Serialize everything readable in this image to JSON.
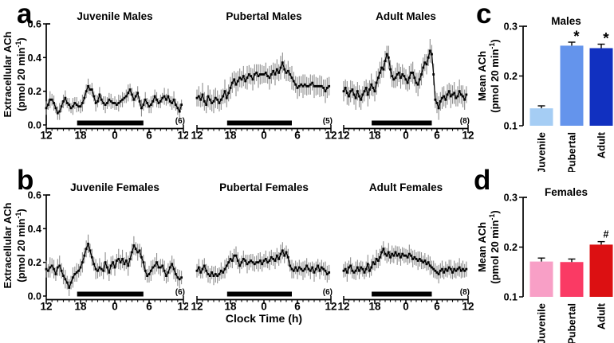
{
  "panels": {
    "a": "a",
    "b": "b",
    "c": "c",
    "d": "d"
  },
  "axis_labels": {
    "line_ylabel_main": "Extracellular ACh",
    "bar_ylabel_main": "Mean ACh",
    "unit_pre": "(pmol 20 min",
    "unit_sup": "-1",
    "unit_post": ")",
    "x_axis_title": "Clock Time (h)"
  },
  "colors": {
    "trace": "#000000",
    "error_bar_line": "#8e8e8e",
    "dark_phase_bar": "#000000",
    "male_juvenile": "#a5cdf4",
    "male_pubertal": "#6494ec",
    "male_adult": "#1130c0",
    "female_juvenile": "#f89fc6",
    "female_pubertal": "#fa3a64",
    "female_adult": "#dc1012"
  },
  "chart_data": [
    {
      "id": "juvenile_males",
      "type": "line",
      "panel": "a",
      "title": "Juvenile Males",
      "n_label": "(6)",
      "x_start_h": 12,
      "x_interval_min": 20,
      "xtick_positions": [
        12,
        18,
        24,
        30,
        36
      ],
      "xtick_labels": [
        "12",
        "18",
        "0",
        "6",
        "12"
      ],
      "ylim": [
        0,
        0.6
      ],
      "ytick_values": [
        0.0,
        0.2,
        0.4,
        0.6
      ],
      "ytick_labels": [
        "0.0",
        "0.2",
        "0.4",
        "0.6"
      ],
      "dark_phase_h": [
        17.4,
        29.0
      ],
      "xlabel": "",
      "values": [
        0.1,
        0.12,
        0.15,
        0.15,
        0.13,
        0.1,
        0.07,
        0.08,
        0.11,
        0.14,
        0.16,
        0.13,
        0.12,
        0.1,
        0.11,
        0.13,
        0.12,
        0.11,
        0.11,
        0.13,
        0.16,
        0.2,
        0.23,
        0.21,
        0.21,
        0.17,
        0.13,
        0.14,
        0.18,
        0.15,
        0.13,
        0.12,
        0.13,
        0.15,
        0.14,
        0.13,
        0.13,
        0.12,
        0.13,
        0.14,
        0.15,
        0.16,
        0.17,
        0.19,
        0.21,
        0.18,
        0.15,
        0.17,
        0.19,
        0.14,
        0.1,
        0.12,
        0.15,
        0.13,
        0.11,
        0.12,
        0.14,
        0.17,
        0.15,
        0.13,
        0.14,
        0.16,
        0.17,
        0.15,
        0.17,
        0.14,
        0.13,
        0.15,
        0.12,
        0.1,
        0.08,
        0.12
      ],
      "errors": [
        0.04,
        0.03,
        0.05,
        0.035,
        0.045,
        0.03,
        0.04,
        0.05,
        0.035,
        0.04,
        0.045,
        0.03,
        0.04,
        0.03,
        0.05,
        0.035,
        0.045,
        0.03,
        0.04,
        0.05,
        0.035,
        0.04,
        0.045,
        0.03,
        0.04,
        0.03,
        0.05,
        0.035,
        0.045,
        0.03,
        0.04,
        0.05,
        0.035,
        0.04,
        0.045,
        0.03,
        0.04,
        0.03,
        0.05,
        0.035,
        0.045,
        0.03,
        0.04,
        0.05,
        0.035,
        0.04,
        0.045,
        0.03,
        0.04,
        0.03,
        0.05,
        0.035,
        0.045,
        0.03,
        0.04,
        0.05,
        0.035,
        0.04,
        0.045,
        0.03,
        0.04,
        0.03,
        0.05,
        0.035,
        0.045,
        0.03,
        0.04,
        0.05,
        0.035,
        0.04,
        0.045,
        0.03
      ]
    },
    {
      "id": "pubertal_males",
      "type": "line",
      "panel": "a",
      "title": "Pubertal Males",
      "n_label": "(5)",
      "x_start_h": 12,
      "x_interval_min": 20,
      "xtick_positions": [
        12,
        18,
        24,
        30,
        36
      ],
      "xtick_labels": [
        "12",
        "18",
        "0",
        "6",
        "12"
      ],
      "ylim": [
        0,
        0.6
      ],
      "ytick_values": [
        0.0,
        0.2,
        0.4,
        0.6
      ],
      "ytick_labels": [
        "0.0",
        "0.2",
        "0.4",
        "0.6"
      ],
      "dark_phase_h": [
        17.4,
        29.0
      ],
      "xlabel": "",
      "values": [
        0.16,
        0.17,
        0.15,
        0.18,
        0.14,
        0.12,
        0.17,
        0.15,
        0.13,
        0.14,
        0.16,
        0.15,
        0.13,
        0.15,
        0.17,
        0.2,
        0.16,
        0.19,
        0.22,
        0.25,
        0.27,
        0.24,
        0.26,
        0.28,
        0.27,
        0.29,
        0.26,
        0.28,
        0.3,
        0.29,
        0.27,
        0.3,
        0.31,
        0.29,
        0.3,
        0.3,
        0.3,
        0.31,
        0.29,
        0.28,
        0.3,
        0.32,
        0.3,
        0.33,
        0.31,
        0.34,
        0.37,
        0.33,
        0.31,
        0.32,
        0.3,
        0.28,
        0.26,
        0.24,
        0.22,
        0.23,
        0.24,
        0.23,
        0.24,
        0.23,
        0.23,
        0.24,
        0.25,
        0.23,
        0.23,
        0.23,
        0.23,
        0.23,
        0.22,
        0.2,
        0.22,
        0.23
      ],
      "errors": [
        0.05,
        0.06,
        0.045,
        0.07,
        0.055,
        0.05,
        0.065,
        0.06,
        0.05,
        0.07,
        0.06,
        0.055,
        0.05,
        0.06,
        0.045,
        0.07,
        0.055,
        0.05,
        0.065,
        0.06,
        0.05,
        0.07,
        0.06,
        0.055,
        0.05,
        0.06,
        0.045,
        0.07,
        0.055,
        0.05,
        0.065,
        0.06,
        0.05,
        0.07,
        0.06,
        0.055,
        0.05,
        0.06,
        0.045,
        0.07,
        0.055,
        0.05,
        0.065,
        0.06,
        0.05,
        0.07,
        0.06,
        0.055,
        0.05,
        0.06,
        0.045,
        0.07,
        0.055,
        0.05,
        0.065,
        0.06,
        0.05,
        0.07,
        0.06,
        0.055,
        0.05,
        0.06,
        0.045,
        0.07,
        0.055,
        0.05,
        0.065,
        0.06,
        0.05,
        0.07,
        0.06,
        0.055
      ]
    },
    {
      "id": "adult_males",
      "type": "line",
      "panel": "a",
      "title": "Adult Males",
      "n_label": "(8)",
      "x_start_h": 12,
      "x_interval_min": 20,
      "xtick_positions": [
        12,
        18,
        24,
        30,
        36
      ],
      "xtick_labels": [
        "12",
        "18",
        "0",
        "6",
        "12"
      ],
      "ylim": [
        0,
        0.6
      ],
      "ytick_values": [
        0.0,
        0.2,
        0.4,
        0.6
      ],
      "ytick_labels": [
        "0.0",
        "0.2",
        "0.4",
        "0.6"
      ],
      "dark_phase_h": [
        17.4,
        29.0
      ],
      "xlabel": "",
      "values": [
        0.2,
        0.22,
        0.19,
        0.17,
        0.2,
        0.21,
        0.18,
        0.16,
        0.2,
        0.17,
        0.15,
        0.18,
        0.2,
        0.22,
        0.18,
        0.21,
        0.24,
        0.22,
        0.2,
        0.25,
        0.28,
        0.31,
        0.34,
        0.33,
        0.38,
        0.42,
        0.4,
        0.33,
        0.29,
        0.27,
        0.28,
        0.3,
        0.31,
        0.28,
        0.3,
        0.29,
        0.27,
        0.25,
        0.28,
        0.31,
        0.31,
        0.28,
        0.25,
        0.24,
        0.27,
        0.3,
        0.34,
        0.37,
        0.36,
        0.4,
        0.44,
        0.42,
        0.3,
        0.15,
        0.13,
        0.1,
        0.14,
        0.16,
        0.17,
        0.15,
        0.18,
        0.2,
        0.17,
        0.18,
        0.19,
        0.16,
        0.17,
        0.2,
        0.18,
        0.17,
        0.15,
        0.18
      ],
      "errors": [
        0.06,
        0.05,
        0.07,
        0.055,
        0.065,
        0.05,
        0.06,
        0.07,
        0.055,
        0.065,
        0.06,
        0.05,
        0.06,
        0.05,
        0.07,
        0.055,
        0.065,
        0.05,
        0.06,
        0.07,
        0.055,
        0.065,
        0.06,
        0.05,
        0.06,
        0.05,
        0.07,
        0.055,
        0.065,
        0.05,
        0.06,
        0.07,
        0.055,
        0.065,
        0.06,
        0.05,
        0.06,
        0.05,
        0.07,
        0.055,
        0.065,
        0.05,
        0.06,
        0.07,
        0.055,
        0.065,
        0.06,
        0.05,
        0.06,
        0.05,
        0.07,
        0.055,
        0.065,
        0.05,
        0.06,
        0.07,
        0.055,
        0.065,
        0.06,
        0.05,
        0.06,
        0.05,
        0.07,
        0.055,
        0.065,
        0.05,
        0.06,
        0.07,
        0.055,
        0.065,
        0.06,
        0.05
      ]
    },
    {
      "id": "males_mean",
      "type": "bar",
      "panel": "c",
      "title": "Males",
      "categories": [
        "Juvenile",
        "Pubertal",
        "Adult"
      ],
      "values": [
        0.135,
        0.261,
        0.256
      ],
      "errors": [
        0.005,
        0.007,
        0.008
      ],
      "annotations": [
        "",
        "*",
        "*"
      ],
      "bar_colors": [
        "#a5cdf4",
        "#6494ec",
        "#1130c0"
      ],
      "ylim": [
        0.1,
        0.3
      ],
      "ytick_values": [
        0.1,
        0.2,
        0.3
      ],
      "ytick_labels": [
        "0.1",
        "0.2",
        "0.3"
      ]
    },
    {
      "id": "juvenile_females",
      "type": "line",
      "panel": "b",
      "title": "Juvenile Females",
      "n_label": "(6)",
      "x_start_h": 12,
      "x_interval_min": 20,
      "xtick_positions": [
        12,
        18,
        24,
        30,
        36
      ],
      "xtick_labels": [
        "12",
        "18",
        "0",
        "6",
        "12"
      ],
      "ylim": [
        0,
        0.6
      ],
      "ytick_values": [
        0.0,
        0.2,
        0.4,
        0.6
      ],
      "ytick_labels": [
        "0.0",
        "0.2",
        "0.4",
        "0.6"
      ],
      "dark_phase_h": [
        17.4,
        29.0
      ],
      "xlabel": "",
      "values": [
        0.16,
        0.15,
        0.17,
        0.18,
        0.16,
        0.13,
        0.17,
        0.18,
        0.15,
        0.12,
        0.1,
        0.08,
        0.05,
        0.08,
        0.11,
        0.13,
        0.14,
        0.15,
        0.17,
        0.2,
        0.24,
        0.28,
        0.31,
        0.27,
        0.23,
        0.19,
        0.16,
        0.15,
        0.17,
        0.16,
        0.15,
        0.2,
        0.17,
        0.14,
        0.18,
        0.2,
        0.17,
        0.21,
        0.22,
        0.2,
        0.22,
        0.19,
        0.21,
        0.18,
        0.22,
        0.26,
        0.3,
        0.28,
        0.26,
        0.27,
        0.23,
        0.2,
        0.15,
        0.12,
        0.13,
        0.15,
        0.17,
        0.18,
        0.2,
        0.17,
        0.17,
        0.18,
        0.15,
        0.12,
        0.14,
        0.17,
        0.19,
        0.16,
        0.13,
        0.11,
        0.1,
        0.11
      ],
      "errors": [
        0.05,
        0.04,
        0.06,
        0.045,
        0.055,
        0.04,
        0.05,
        0.06,
        0.045,
        0.05,
        0.055,
        0.04,
        0.05,
        0.04,
        0.06,
        0.045,
        0.055,
        0.04,
        0.05,
        0.06,
        0.045,
        0.05,
        0.055,
        0.04,
        0.05,
        0.04,
        0.06,
        0.045,
        0.055,
        0.04,
        0.05,
        0.06,
        0.045,
        0.05,
        0.055,
        0.04,
        0.05,
        0.04,
        0.06,
        0.045,
        0.055,
        0.04,
        0.05,
        0.06,
        0.045,
        0.05,
        0.055,
        0.04,
        0.05,
        0.04,
        0.06,
        0.045,
        0.055,
        0.04,
        0.05,
        0.06,
        0.045,
        0.05,
        0.055,
        0.04,
        0.05,
        0.04,
        0.06,
        0.045,
        0.055,
        0.04,
        0.05,
        0.06,
        0.045,
        0.05,
        0.055,
        0.04
      ]
    },
    {
      "id": "pubertal_females",
      "type": "line",
      "panel": "b",
      "title": "Pubertal Females",
      "n_label": "(6)",
      "x_start_h": 12,
      "x_interval_min": 20,
      "xtick_positions": [
        12,
        18,
        24,
        30,
        36
      ],
      "xtick_labels": [
        "12",
        "18",
        "0",
        "6",
        "12"
      ],
      "ylim": [
        0,
        0.6
      ],
      "ytick_values": [
        0.0,
        0.2,
        0.4,
        0.6
      ],
      "ytick_labels": [
        "0.0",
        "0.2",
        "0.4",
        "0.6"
      ],
      "dark_phase_h": [
        17.4,
        29.0
      ],
      "xlabel": "Clock Time (h)",
      "values": [
        0.15,
        0.17,
        0.14,
        0.16,
        0.18,
        0.15,
        0.13,
        0.12,
        0.14,
        0.12,
        0.13,
        0.12,
        0.13,
        0.15,
        0.14,
        0.16,
        0.18,
        0.2,
        0.22,
        0.21,
        0.24,
        0.24,
        0.21,
        0.18,
        0.2,
        0.22,
        0.21,
        0.19,
        0.2,
        0.21,
        0.2,
        0.19,
        0.2,
        0.2,
        0.21,
        0.19,
        0.21,
        0.22,
        0.2,
        0.21,
        0.23,
        0.22,
        0.21,
        0.24,
        0.22,
        0.25,
        0.27,
        0.24,
        0.26,
        0.23,
        0.18,
        0.16,
        0.15,
        0.17,
        0.15,
        0.17,
        0.16,
        0.15,
        0.16,
        0.18,
        0.16,
        0.15,
        0.17,
        0.14,
        0.16,
        0.18,
        0.15,
        0.17,
        0.16,
        0.15,
        0.13,
        0.14
      ],
      "errors": [
        0.04,
        0.05,
        0.035,
        0.055,
        0.045,
        0.04,
        0.05,
        0.045,
        0.04,
        0.055,
        0.05,
        0.045,
        0.04,
        0.05,
        0.035,
        0.055,
        0.045,
        0.04,
        0.05,
        0.045,
        0.04,
        0.055,
        0.05,
        0.045,
        0.04,
        0.05,
        0.035,
        0.055,
        0.045,
        0.04,
        0.05,
        0.045,
        0.04,
        0.055,
        0.05,
        0.045,
        0.04,
        0.05,
        0.035,
        0.055,
        0.045,
        0.04,
        0.05,
        0.045,
        0.04,
        0.055,
        0.05,
        0.045,
        0.04,
        0.05,
        0.035,
        0.055,
        0.045,
        0.04,
        0.05,
        0.045,
        0.04,
        0.055,
        0.05,
        0.045,
        0.04,
        0.05,
        0.035,
        0.055,
        0.045,
        0.04,
        0.05,
        0.045,
        0.04,
        0.055,
        0.05,
        0.045
      ]
    },
    {
      "id": "adult_females",
      "type": "line",
      "panel": "b",
      "title": "Adult Females",
      "n_label": "(8)",
      "x_start_h": 12,
      "x_interval_min": 20,
      "xtick_positions": [
        12,
        18,
        24,
        30,
        36
      ],
      "xtick_labels": [
        "12",
        "18",
        "0",
        "6",
        "12"
      ],
      "ylim": [
        0,
        0.6
      ],
      "ytick_values": [
        0.0,
        0.2,
        0.4,
        0.6
      ],
      "ytick_labels": [
        "0.0",
        "0.2",
        "0.4",
        "0.6"
      ],
      "dark_phase_h": [
        17.4,
        29.0
      ],
      "xlabel": "",
      "values": [
        0.15,
        0.16,
        0.14,
        0.17,
        0.18,
        0.15,
        0.14,
        0.15,
        0.17,
        0.15,
        0.17,
        0.16,
        0.14,
        0.16,
        0.19,
        0.15,
        0.17,
        0.2,
        0.19,
        0.22,
        0.21,
        0.23,
        0.26,
        0.28,
        0.25,
        0.24,
        0.26,
        0.23,
        0.25,
        0.24,
        0.26,
        0.24,
        0.25,
        0.23,
        0.25,
        0.24,
        0.24,
        0.23,
        0.25,
        0.24,
        0.22,
        0.23,
        0.22,
        0.21,
        0.22,
        0.21,
        0.2,
        0.21,
        0.19,
        0.2,
        0.18,
        0.17,
        0.16,
        0.15,
        0.14,
        0.13,
        0.15,
        0.16,
        0.14,
        0.16,
        0.15,
        0.17,
        0.16,
        0.14,
        0.16,
        0.15,
        0.16,
        0.17,
        0.15,
        0.16,
        0.15,
        0.16
      ],
      "errors": [
        0.04,
        0.045,
        0.055,
        0.04,
        0.05,
        0.045,
        0.04,
        0.055,
        0.045,
        0.05,
        0.04,
        0.045,
        0.04,
        0.045,
        0.055,
        0.04,
        0.05,
        0.045,
        0.04,
        0.055,
        0.045,
        0.05,
        0.04,
        0.045,
        0.04,
        0.045,
        0.055,
        0.04,
        0.05,
        0.045,
        0.04,
        0.055,
        0.045,
        0.05,
        0.04,
        0.045,
        0.04,
        0.045,
        0.055,
        0.04,
        0.05,
        0.045,
        0.04,
        0.055,
        0.045,
        0.05,
        0.04,
        0.045,
        0.04,
        0.045,
        0.055,
        0.04,
        0.05,
        0.045,
        0.04,
        0.055,
        0.045,
        0.05,
        0.04,
        0.045,
        0.04,
        0.045,
        0.055,
        0.04,
        0.05,
        0.045,
        0.04,
        0.055,
        0.045,
        0.05,
        0.04,
        0.045
      ]
    },
    {
      "id": "females_mean",
      "type": "bar",
      "panel": "d",
      "title": "Females",
      "categories": [
        "Juvenile",
        "Pubertal",
        "Adult"
      ],
      "values": [
        0.171,
        0.17,
        0.205
      ],
      "errors": [
        0.007,
        0.006,
        0.006
      ],
      "annotations": [
        "",
        "",
        "#"
      ],
      "bar_colors": [
        "#f89fc6",
        "#fa3a64",
        "#dc1012"
      ],
      "ylim": [
        0.1,
        0.3
      ],
      "ytick_values": [
        0.1,
        0.2,
        0.3
      ],
      "ytick_labels": [
        "0.1",
        "0.2",
        "0.3"
      ]
    }
  ]
}
